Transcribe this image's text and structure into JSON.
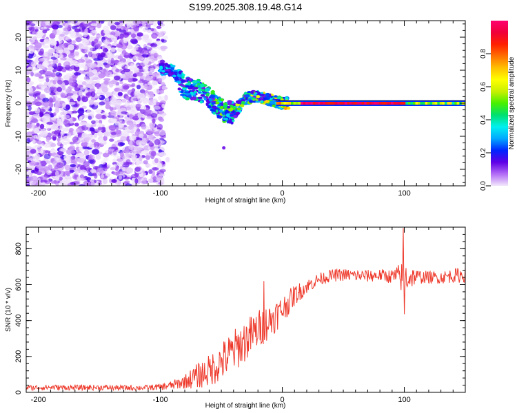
{
  "title": "S199.2025.308.19.48.G14",
  "chart_data": [
    {
      "type": "heatmap",
      "name": "spectrogram",
      "xlabel": "Height of straight line (km)",
      "ylabel": "Frequency (Hz)",
      "xlim": [
        -210,
        150
      ],
      "ylim": [
        -25,
        25
      ],
      "xticks": [
        -200,
        -100,
        0,
        100
      ],
      "xtick_labels": [
        "-200",
        "-100",
        "0",
        "100"
      ],
      "yticks": [
        -20,
        -10,
        0,
        10,
        20
      ],
      "ytick_labels": [
        "-20",
        "-10",
        "0",
        "10",
        "20"
      ],
      "colorbar": {
        "label": "Normalized spectral amplitude",
        "range": [
          0,
          1
        ],
        "ticks": [
          0.0,
          0.2,
          0.4,
          0.6,
          0.8
        ],
        "tick_labels": [
          "0.0",
          "0.2",
          "0.4",
          "0.6",
          "0.8"
        ],
        "colors": [
          "#f2e8fb",
          "#b36cf5",
          "#5e00e6",
          "#0024ff",
          "#00a8ff",
          "#00f0f0",
          "#00e070",
          "#48f000",
          "#c8f000",
          "#ffff00",
          "#ffc000",
          "#ff7000",
          "#ff2000",
          "#f0003a",
          "#ff0070"
        ]
      },
      "noise_region_x": [
        -210,
        -97
      ],
      "tone_path": [
        {
          "x": -100,
          "f": 10.5
        },
        {
          "x": -90,
          "f": 10.0
        },
        {
          "x": -80,
          "f": 4.5
        },
        {
          "x": -70,
          "f": 4.0
        },
        {
          "x": -60,
          "f": 1.5
        },
        {
          "x": -50,
          "f": -2.0
        },
        {
          "x": -40,
          "f": -3.0
        },
        {
          "x": -30,
          "f": 1.5
        },
        {
          "x": -20,
          "f": 2.0
        },
        {
          "x": -10,
          "f": 1.0
        },
        {
          "x": 0,
          "f": 0.0
        },
        {
          "x": 150,
          "f": 0.0
        }
      ],
      "carrier": {
        "f": 0.0,
        "x_range": [
          -5,
          150
        ],
        "peak_amplitude": 1.0
      }
    },
    {
      "type": "line",
      "name": "snr",
      "xlabel": "Height of straight line (km)",
      "ylabel": "SNR (10 * v/v)",
      "xlim": [
        -210,
        150
      ],
      "ylim": [
        0,
        920
      ],
      "xticks": [
        -200,
        -100,
        0,
        100
      ],
      "xtick_labels": [
        "-200",
        "-100",
        "0",
        "100"
      ],
      "yticks": [
        0,
        200,
        400,
        600,
        800
      ],
      "ytick_labels": [
        "0",
        "200",
        "400",
        "600",
        "800"
      ],
      "color": "#ee3a2c",
      "x": [
        -210,
        -190,
        -170,
        -150,
        -130,
        -110,
        -100,
        -90,
        -80,
        -70,
        -60,
        -50,
        -40,
        -30,
        -20,
        -10,
        0,
        10,
        20,
        30,
        40,
        50,
        60,
        70,
        80,
        90,
        100,
        110,
        120,
        130,
        140,
        150
      ],
      "y": [
        25,
        28,
        26,
        27,
        25,
        26,
        30,
        40,
        60,
        90,
        120,
        170,
        230,
        290,
        350,
        400,
        460,
        540,
        590,
        630,
        650,
        655,
        650,
        648,
        652,
        645,
        640,
        645,
        640,
        640,
        650,
        655
      ],
      "noise_amplitude": [
        15,
        15,
        15,
        15,
        15,
        15,
        18,
        25,
        40,
        70,
        90,
        110,
        120,
        120,
        110,
        100,
        80,
        60,
        40,
        35,
        35,
        35,
        35,
        35,
        35,
        40,
        100,
        40,
        35,
        35,
        40,
        45
      ],
      "spikes": [
        {
          "x": 99,
          "y": 915
        },
        {
          "x": 100,
          "y": 435
        },
        {
          "x": -15,
          "y": 620
        }
      ]
    }
  ]
}
